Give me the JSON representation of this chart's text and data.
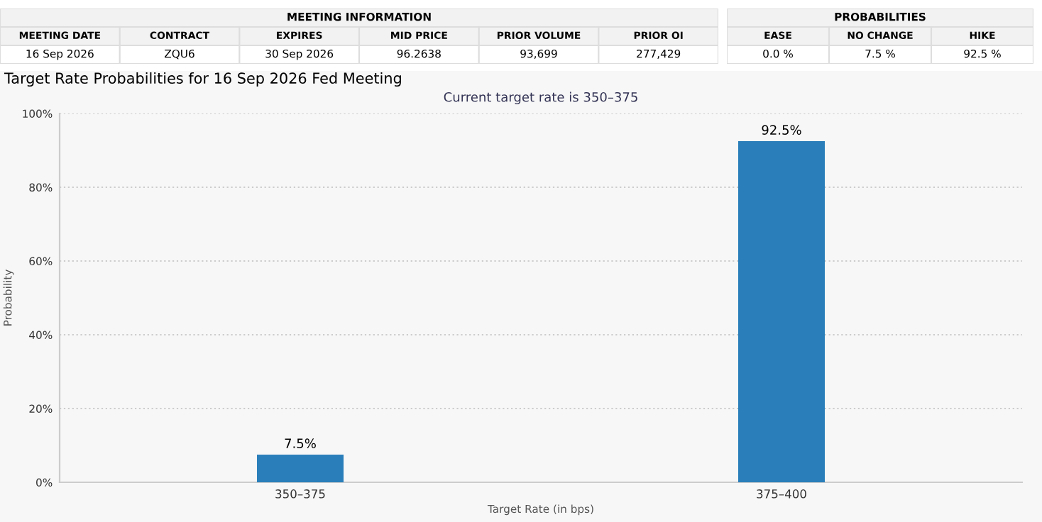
{
  "chart_data": [
    {
      "type": "other",
      "title": "MEETING INFORMATION",
      "categories": [
        "MEETING DATE",
        "CONTRACT",
        "EXPIRES",
        "MID PRICE",
        "PRIOR VOLUME",
        "PRIOR OI"
      ],
      "annotations": [
        "16 Sep 2026",
        "ZQU6",
        "30 Sep 2026",
        "96.2638",
        "93,699",
        "277,429"
      ]
    },
    {
      "type": "other",
      "title": "PROBABILITIES",
      "categories": [
        "EASE",
        "NO CHANGE",
        "HIKE"
      ],
      "annotations": [
        "0.0 %",
        "7.5 %",
        "92.5 %"
      ]
    },
    {
      "type": "bar",
      "title": "Target Rate Probabilities for 16 Sep 2026 Fed Meeting",
      "subtitle": "Current target rate is 350–375",
      "xlabel": "Target Rate (in bps)",
      "ylabel": "Probability",
      "categories": [
        "350–375",
        "375–400"
      ],
      "values": [
        7.5,
        92.5
      ],
      "color": "#2a7fba",
      "value_labels": [
        "7.5%",
        "92.5%"
      ],
      "ylim": [
        0,
        100
      ],
      "yticks": [
        {
          "value": 0,
          "label": "0%"
        },
        {
          "value": 20,
          "label": "20%"
        },
        {
          "value": 40,
          "label": "40%"
        },
        {
          "value": 60,
          "label": "60%"
        },
        {
          "value": 80,
          "label": "80%"
        },
        {
          "value": 100,
          "label": "100%"
        }
      ],
      "grid": "y"
    }
  ]
}
